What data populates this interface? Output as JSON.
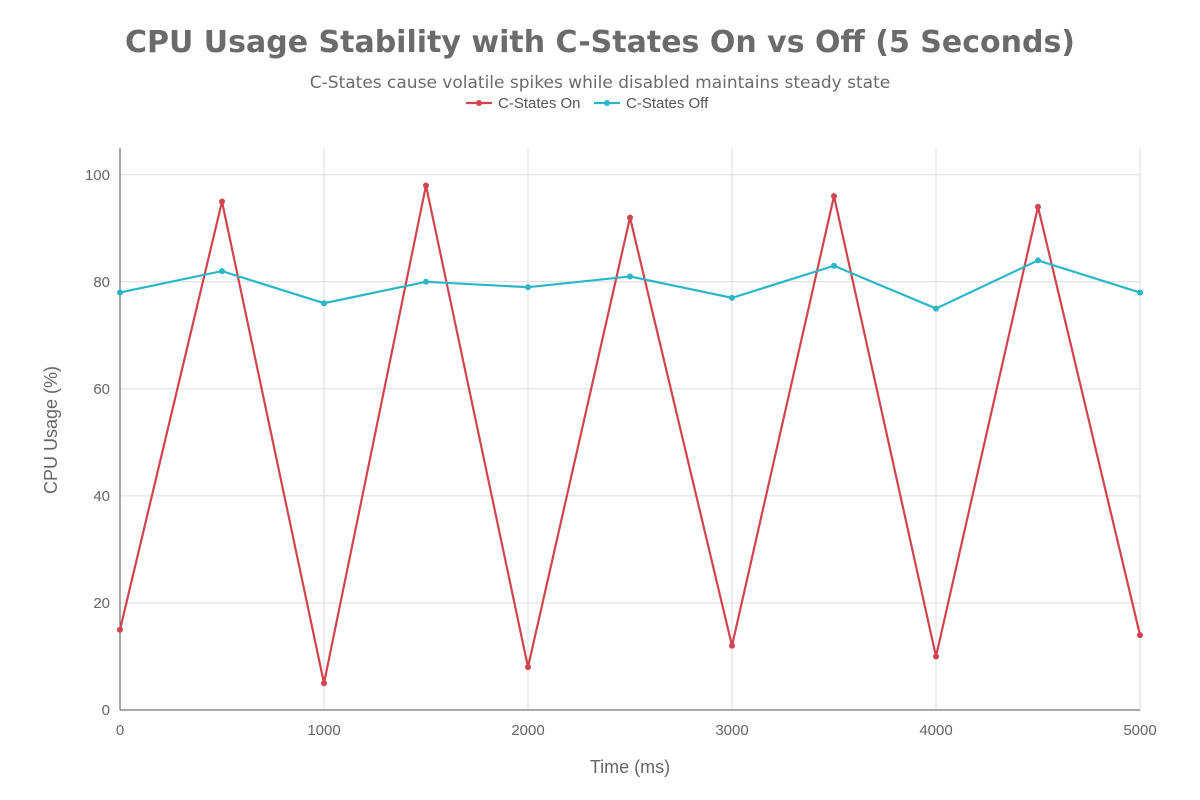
{
  "chart_data": {
    "type": "line",
    "title": "CPU Usage Stability with C-States On vs Off (5 Seconds)",
    "subtitle": "C-States cause volatile spikes while disabled maintains steady state",
    "xlabel": "Time (ms)",
    "ylabel": "CPU Usage (%)",
    "x": [
      0,
      500,
      1000,
      1500,
      2000,
      2500,
      3000,
      3500,
      4000,
      4500,
      5000
    ],
    "xlim": [
      0,
      5000
    ],
    "ylim": [
      0,
      105
    ],
    "xticks": [
      0,
      1000,
      2000,
      3000,
      4000,
      5000
    ],
    "yticks": [
      0,
      20,
      40,
      60,
      80,
      100
    ],
    "grid": true,
    "legend_position": "top-center",
    "series": [
      {
        "name": "C-States On",
        "color": "#d1444e",
        "values": [
          15,
          95,
          5,
          98,
          8,
          92,
          12,
          96,
          10,
          94,
          14
        ]
      },
      {
        "name": "C-States Off",
        "color": "#2bb6c8",
        "values": [
          78,
          82,
          76,
          80,
          79,
          81,
          77,
          83,
          75,
          84,
          78
        ]
      }
    ]
  }
}
